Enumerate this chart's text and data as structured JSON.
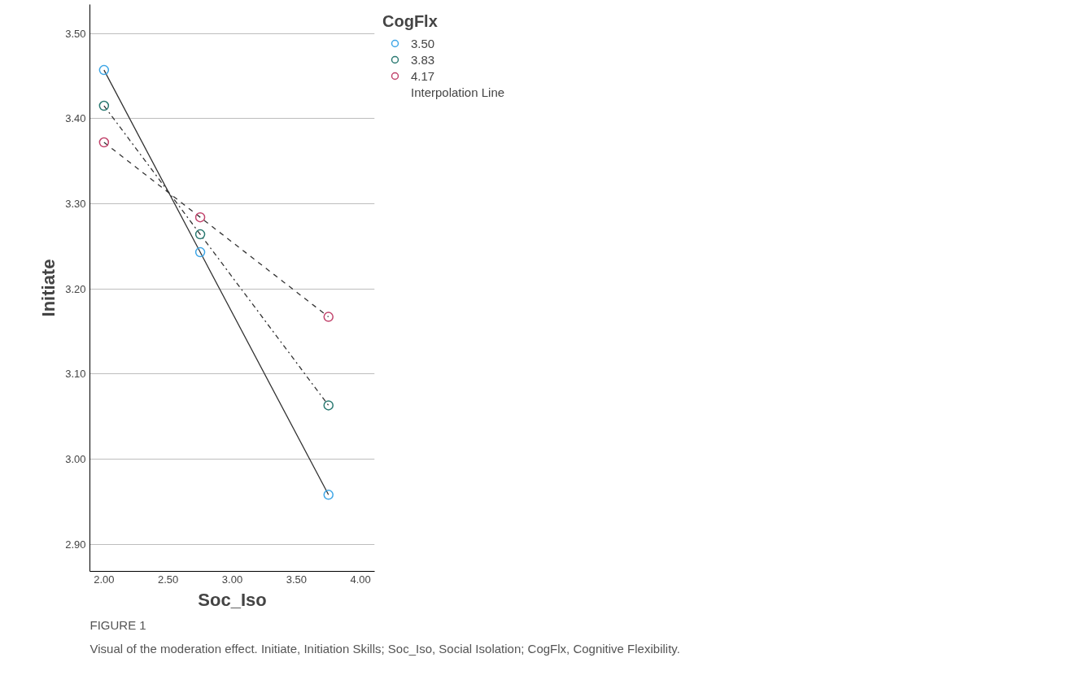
{
  "chart_data": {
    "type": "line",
    "xlabel": "Soc_Iso",
    "ylabel": "Initiate",
    "legend_title": "CogFlx",
    "legend": "top right",
    "grid": "y",
    "marker": "circle",
    "x": [
      2.0,
      2.75,
      3.75
    ],
    "series": [
      {
        "name": "3.50",
        "color": "#3ea6e6",
        "line_style": "solid",
        "values": [
          3.457,
          3.243,
          2.958
        ]
      },
      {
        "name": "3.83",
        "color": "#2b7a72",
        "line_style": "dashdot",
        "values": [
          3.415,
          3.264,
          3.063
        ]
      },
      {
        "name": "4.17",
        "color": "#c2456d",
        "line_style": "dashed",
        "values": [
          3.372,
          3.284,
          3.167
        ]
      }
    ],
    "xlim": [
      1.89,
      4.11
    ],
    "ylim": [
      2.868,
      3.534
    ],
    "xticks": [
      {
        "value": 2.0,
        "label": "2.00"
      },
      {
        "value": 2.5,
        "label": "2.50"
      },
      {
        "value": 3.0,
        "label": "3.00"
      },
      {
        "value": 3.5,
        "label": "3.50"
      },
      {
        "value": 4.0,
        "label": "4.00"
      }
    ],
    "yticks": [
      {
        "value": 2.9,
        "label": "2.90"
      },
      {
        "value": 3.0,
        "label": "3.00"
      },
      {
        "value": 3.1,
        "label": "3.10"
      },
      {
        "value": 3.2,
        "label": "3.20"
      },
      {
        "value": 3.3,
        "label": "3.30"
      },
      {
        "value": 3.4,
        "label": "3.40"
      },
      {
        "value": 3.5,
        "label": "3.50"
      }
    ],
    "annotations": [
      "Interpolation Line",
      "FIGURE 1",
      "Visual of the moderation effect. Initiate, Initiation Skills; Soc_Iso, Social Isolation; CogFlx, Cognitive Flexibility."
    ]
  }
}
